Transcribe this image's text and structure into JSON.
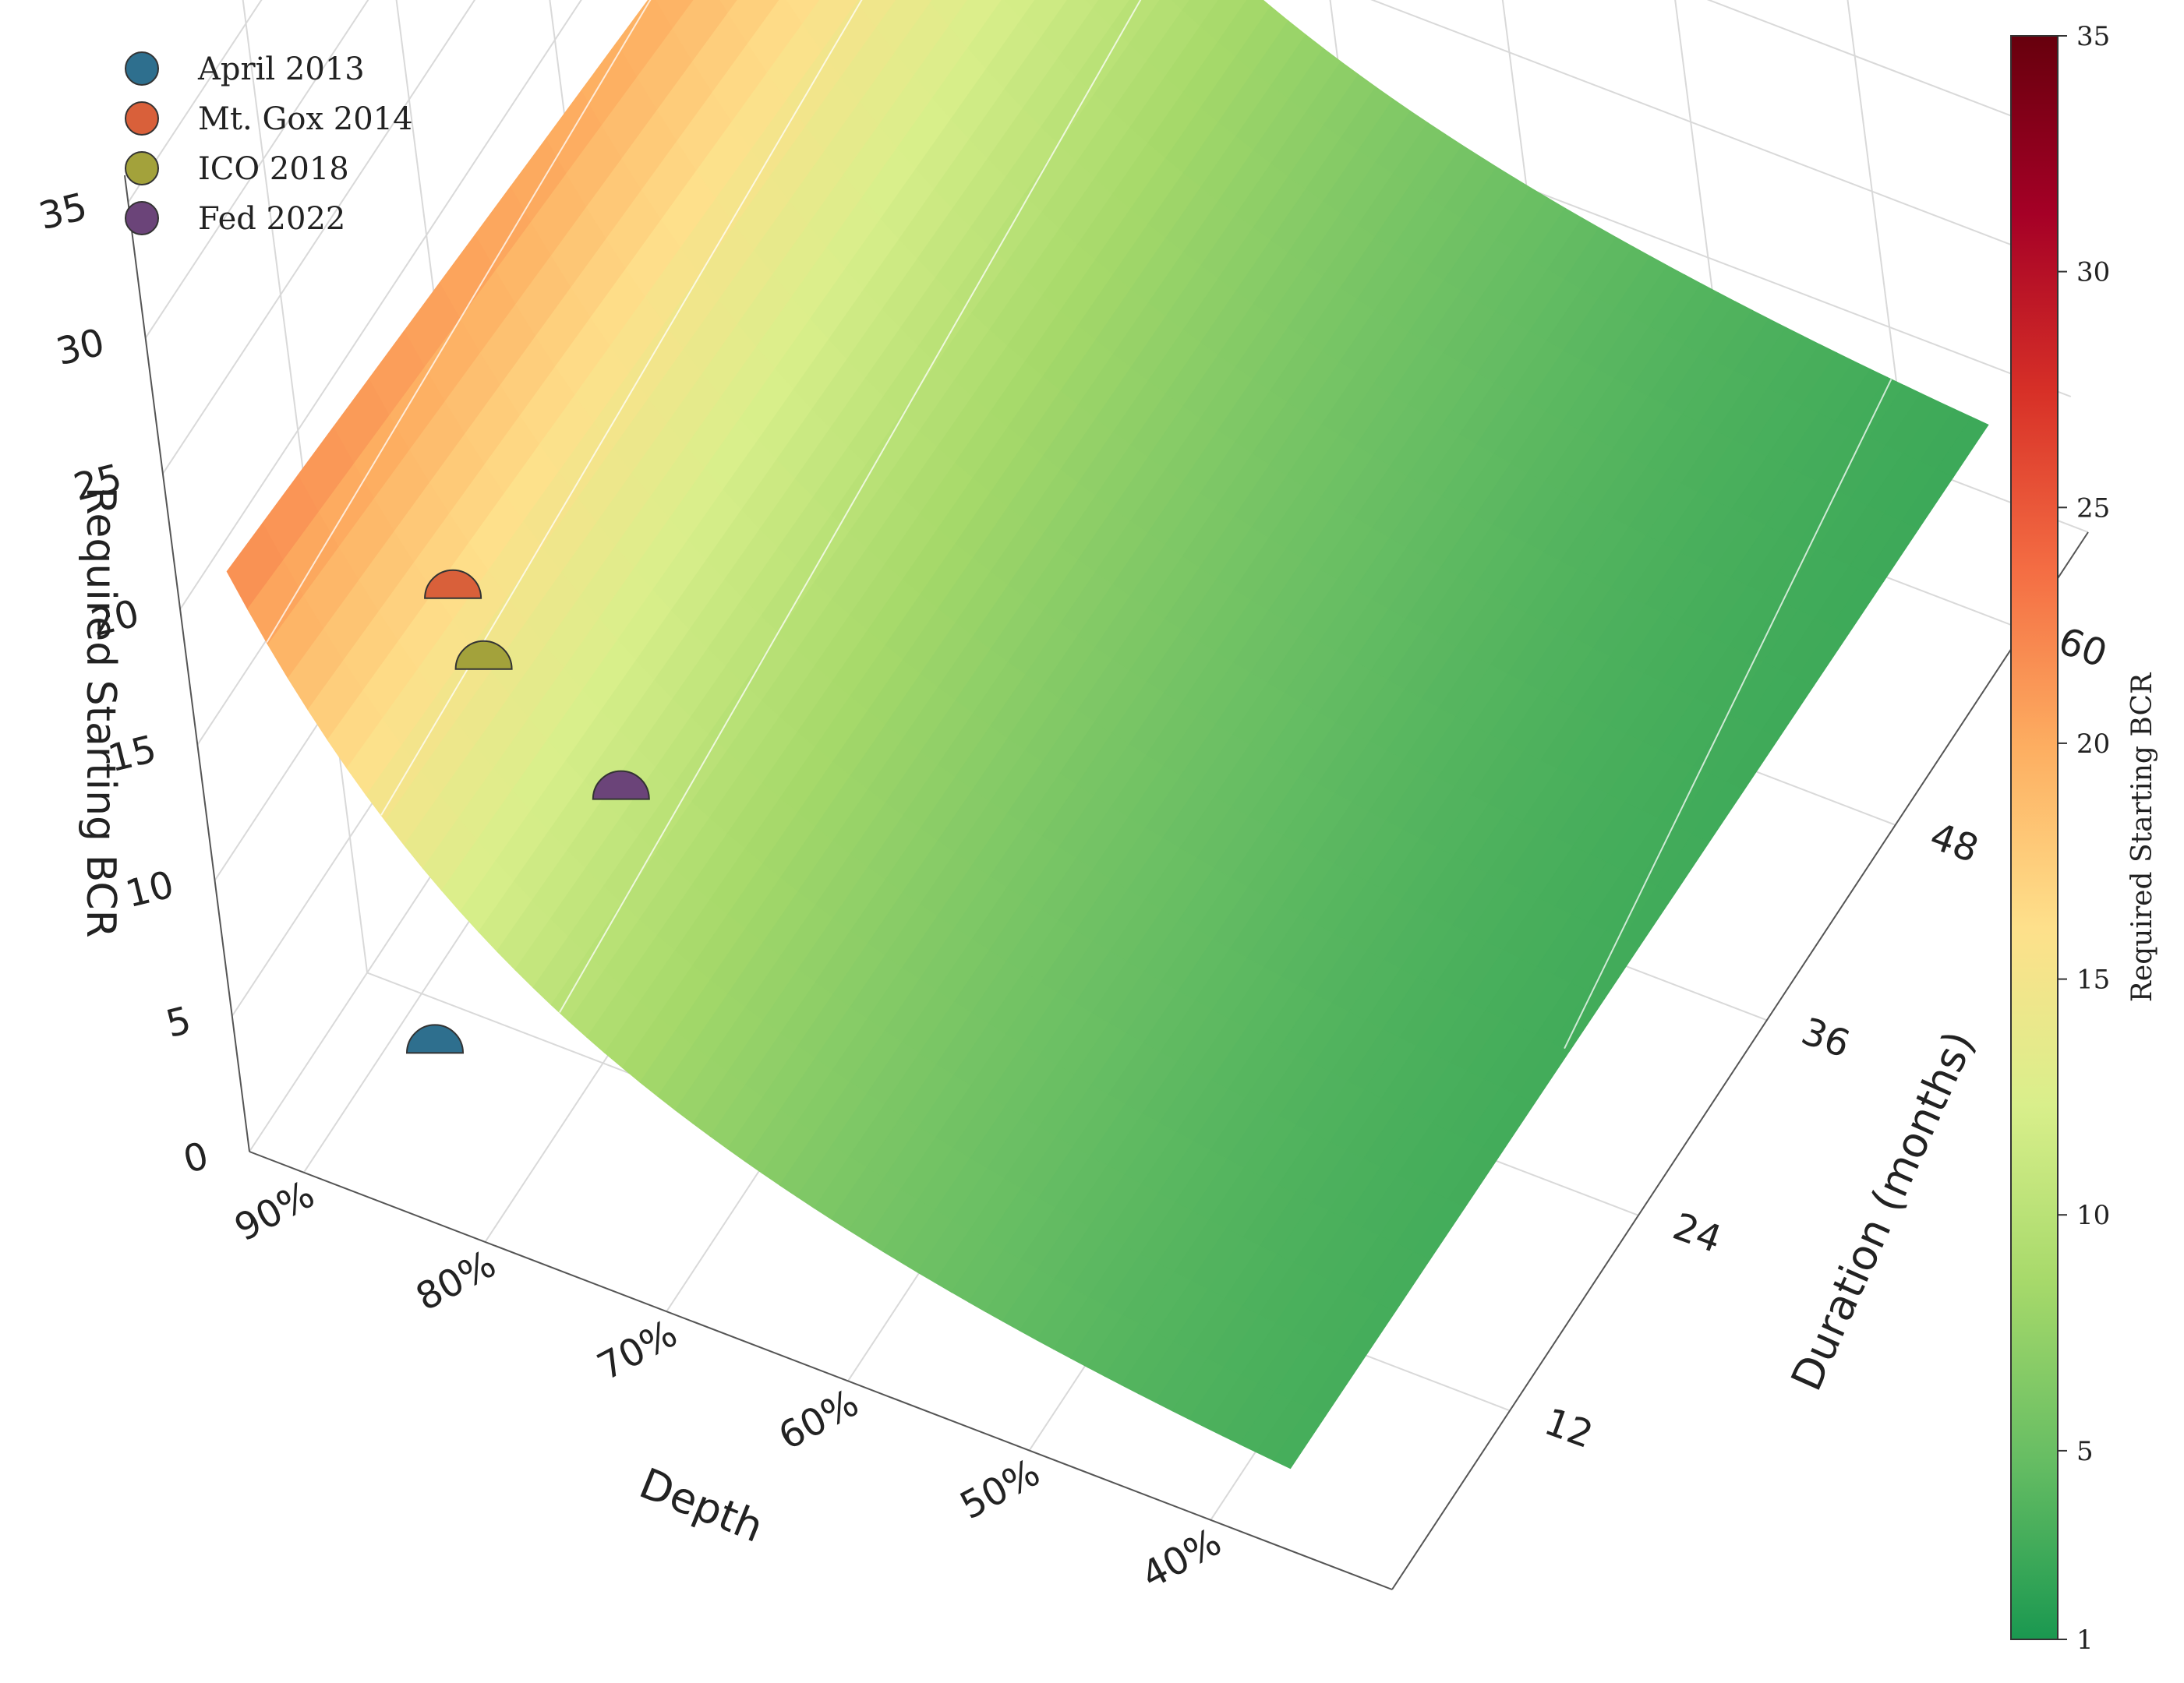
{
  "chart_data": [
    {
      "type": "surface",
      "xlabel": "Depth",
      "ylabel": "Duration (months)",
      "zlabel": "Required Starting BCR",
      "x_ticks": [
        "90%",
        "80%",
        "70%",
        "60%",
        "50%",
        "40%"
      ],
      "x_tick_values": [
        0.9,
        0.8,
        0.7,
        0.6,
        0.5,
        0.4
      ],
      "y_ticks": [
        "12",
        "24",
        "36",
        "48",
        "60"
      ],
      "y_tick_values": [
        12,
        24,
        36,
        48,
        60
      ],
      "z_ticks": [
        "0",
        "5",
        "10",
        "15",
        "20",
        "25",
        "30",
        "35"
      ],
      "z_tick_values": [
        0,
        5,
        10,
        15,
        20,
        25,
        30,
        35
      ],
      "xlim": [
        0.93,
        0.3
      ],
      "ylim": [
        1,
        66
      ],
      "zlim": [
        0,
        36
      ],
      "grid": true,
      "colormap": "RdYlGn_r",
      "surface_contour_levels": [
        3,
        10,
        15,
        20,
        25,
        30
      ],
      "legend": {
        "position": "top-left",
        "entries": [
          {
            "name": "April 2013",
            "color": "#2e6f8e"
          },
          {
            "name": "Mt. Gox 2014",
            "color": "#d9603a"
          },
          {
            "name": "ICO 2018",
            "color": "#a3a23b"
          },
          {
            "name": "Fed 2022",
            "color": "#6b4479"
          }
        ]
      },
      "events": [
        {
          "name": "April 2013",
          "depth": 0.83,
          "duration": 3,
          "bcr": 5.0,
          "color": "#2e6f8e"
        },
        {
          "name": "Mt. Gox 2014",
          "depth": 0.86,
          "duration": 13,
          "bcr": 15.0,
          "color": "#d9603a"
        },
        {
          "name": "ICO 2018",
          "depth": 0.84,
          "duration": 12,
          "bcr": 13.5,
          "color": "#a3a23b"
        },
        {
          "name": "Fed 2022",
          "depth": 0.77,
          "duration": 12,
          "bcr": 10.5,
          "color": "#6b4479"
        }
      ]
    },
    {
      "type": "colorbar",
      "label": "Required Starting BCR",
      "ticks": [
        "1",
        "5",
        "10",
        "15",
        "20",
        "25",
        "30",
        "35"
      ],
      "tick_values": [
        1,
        5,
        10,
        15,
        20,
        25,
        30,
        35
      ],
      "range": [
        1,
        35
      ],
      "colors": [
        "#1a9850",
        "#66bd63",
        "#a6d96a",
        "#d9ef8b",
        "#fee08b",
        "#fdae61",
        "#f46d43",
        "#d73027",
        "#a50026",
        "#67000d"
      ]
    }
  ]
}
